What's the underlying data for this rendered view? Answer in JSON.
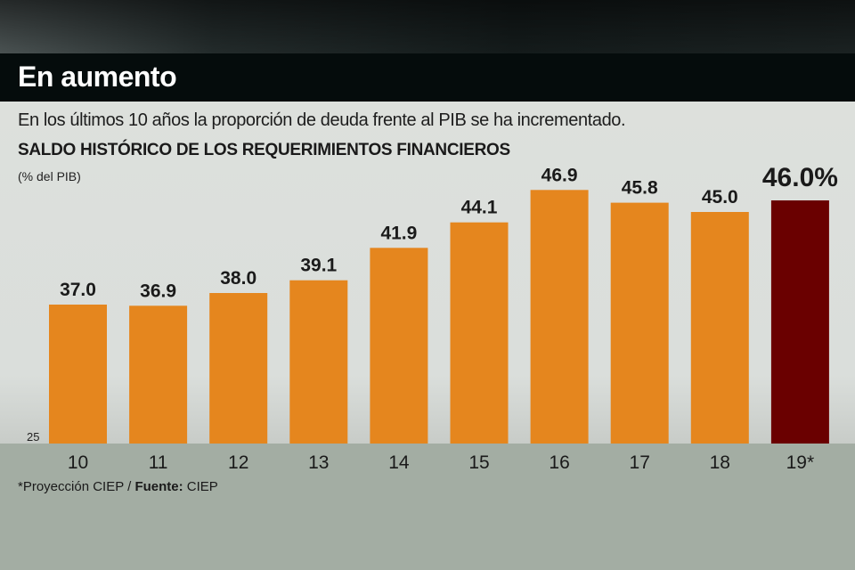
{
  "header": {
    "title": "En aumento",
    "subtitle": "En los últimos 10 años la proporción de deuda frente al PIB se ha incrementado."
  },
  "chart_data": {
    "type": "bar",
    "title": "SALDO HISTÓRICO DE LOS REQUERIMIENTOS FINANCIEROS",
    "ylabel": "(% del PIB)",
    "xlabel": "",
    "categories": [
      "10",
      "11",
      "12",
      "13",
      "14",
      "15",
      "16",
      "17",
      "18",
      "19*"
    ],
    "values": [
      37.0,
      36.9,
      38.0,
      39.1,
      41.9,
      44.1,
      46.9,
      45.8,
      45.0,
      46.0
    ],
    "data_labels": [
      "37.0",
      "36.9",
      "38.0",
      "39.1",
      "41.9",
      "44.1",
      "46.9",
      "45.8",
      "45.0",
      "46.0%"
    ],
    "ylim": [
      25,
      48
    ],
    "y_tick_labels": [
      "25"
    ],
    "grid": false,
    "colors": {
      "bar": "#e5861e",
      "highlight": "#6a0000"
    }
  },
  "footer": {
    "note": "*Proyección CIEP / ",
    "source_label": "Fuente:",
    "source": " CIEP"
  }
}
